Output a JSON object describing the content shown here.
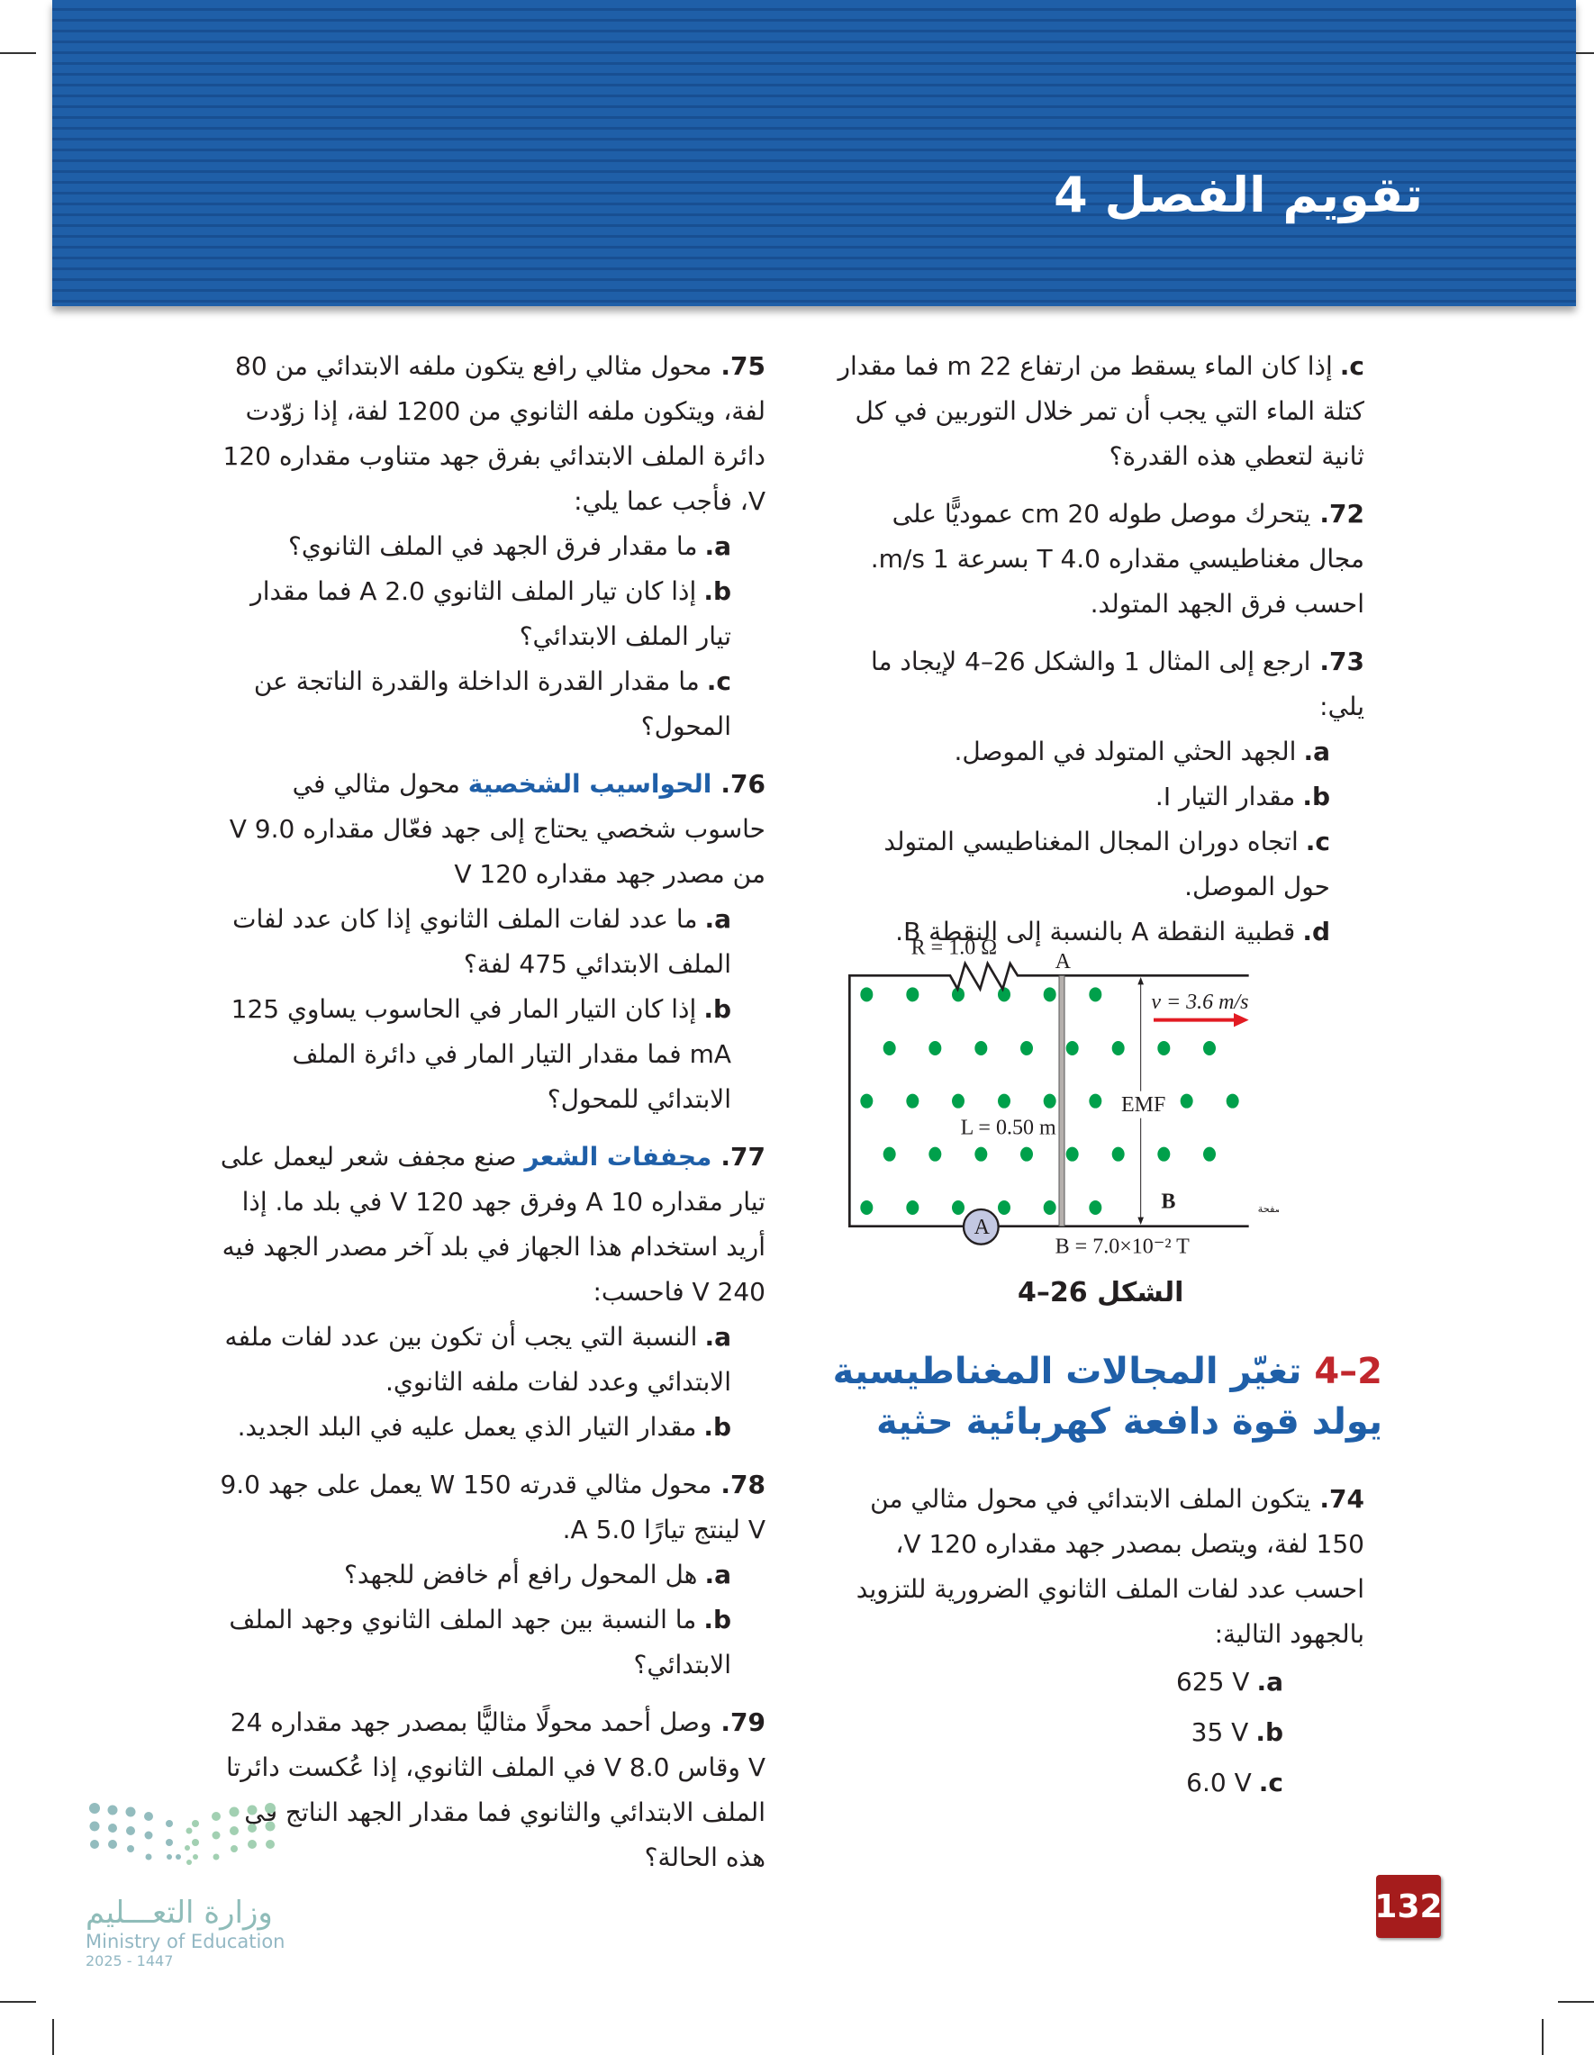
{
  "header": {
    "title": "تقويم الفصل 4",
    "color": "#1f5fa8"
  },
  "right_column": {
    "q71c": {
      "label": "c.",
      "text": "إذا كان الماء يسقط من ارتفاع 22 m فما مقدار كتلة الماء التي يجب أن تمر خلال التوربين في كل ثانية لتعطي هذه القدرة؟"
    },
    "q72": {
      "num": "72.",
      "text": "يتحرك موصل طوله 20 cm عموديًّا على مجال مغناطيسي مقداره 4.0 T بسرعة 1 m/s. احسب فرق الجهد المتولد."
    },
    "q73": {
      "num": "73.",
      "text": "ارجع إلى المثال 1 والشكل 26–4 لإيجاد ما يلي:",
      "items": [
        {
          "label": "a.",
          "text": "الجهد الحثي المتولد في الموصل."
        },
        {
          "label": "b.",
          "text": "مقدار التيار I."
        },
        {
          "label": "c.",
          "text": "اتجاه دوران المجال المغناطيسي المتولد حول الموصل."
        },
        {
          "label": "d.",
          "text": "قطبية النقطة A بالنسبة إلى النقطة B."
        }
      ]
    },
    "figure": {
      "resistance": "R = 1.0 Ω",
      "point_a": "A",
      "velocity": "v = 3.6 m/s",
      "emf": "EMF",
      "length": "L = 0.50 m",
      "field_label": "B",
      "field_direction": "خارجًا من الصفحة",
      "ammeter": "A",
      "field_value": "B = 7.0×10⁻² T",
      "caption": "الشكل 26–4",
      "dot_color": "#00a04b",
      "arrow_color": "#e21b23"
    },
    "section": {
      "num": "2–4",
      "title": "تغيّر المجالات المغناطيسية يولد قوة دافعة كهربائية حثية"
    },
    "q74": {
      "num": "74.",
      "text": "يتكون الملف الابتدائي في محول مثالي من 150 لفة، ويتصل بمصدر جهد مقداره 120 V، احسب عدد لفات الملف الثانوي الضرورية للتزويد بالجهود التالية:",
      "items": [
        {
          "label": "a.",
          "text": "625 V"
        },
        {
          "label": "b.",
          "text": "35 V"
        },
        {
          "label": "c.",
          "text": "6.0 V"
        }
      ]
    }
  },
  "left_column": {
    "q75": {
      "num": "75.",
      "text": "محول مثالي رافع يتكون ملفه الابتدائي من 80 لفة، ويتكون ملفه الثانوي من 1200 لفة، إذا زوّدت دائرة الملف الابتدائي بفرق جهد متناوب مقداره 120 V، فأجب عما يلي:",
      "items": [
        {
          "label": "a.",
          "text": "ما مقدار فرق الجهد في الملف الثانوي؟"
        },
        {
          "label": "b.",
          "text": "إذا كان تيار الملف الثانوي 2.0 A فما مقدار تيار الملف الابتدائي؟"
        },
        {
          "label": "c.",
          "text": "ما مقدار القدرة الداخلة والقدرة الناتجة عن المحول؟"
        }
      ]
    },
    "q76": {
      "num": "76.",
      "keyword": "الحواسيب الشخصية",
      "text": "محول مثالي في حاسوب شخصي يحتاج إلى جهد فعّال مقداره 9.0 V من مصدر جهد مقداره 120 V",
      "items": [
        {
          "label": "a.",
          "text": "ما عدد لفات الملف الثانوي إذا كان عدد لفات الملف الابتدائي 475 لفة؟"
        },
        {
          "label": "b.",
          "text": "إذا كان التيار المار في الحاسوب يساوي 125 mA فما مقدار التيار المار في دائرة الملف الابتدائي للمحول؟"
        }
      ]
    },
    "q77": {
      "num": "77.",
      "keyword": "مجففات الشعر",
      "text": "صنع مجفف شعر ليعمل على تيار مقداره 10 A وفرق جهد 120 V في بلد ما. إذا أريد استخدام هذا الجهاز في بلد آخر مصدر الجهد فيه 240 V فاحسب:",
      "items": [
        {
          "label": "a.",
          "text": "النسبة التي يجب أن تكون بين عدد لفات ملفه الابتدائي وعدد لفات ملفه الثانوي."
        },
        {
          "label": "b.",
          "text": "مقدار التيار الذي يعمل عليه في البلد الجديد."
        }
      ]
    },
    "q78": {
      "num": "78.",
      "text": "محول مثالي قدرته 150 W يعمل على جهد 9.0 V لينتج تيارًا 5.0 A.",
      "items": [
        {
          "label": "a.",
          "text": "هل المحول رافع أم خافض للجهد؟"
        },
        {
          "label": "b.",
          "text": "ما النسبة بين جهد الملف الثانوي وجهد الملف الابتدائي؟"
        }
      ]
    },
    "q79": {
      "num": "79.",
      "text": "وصل أحمد محولًا مثاليًّا بمصدر جهد مقداره 24 V وقاس 8.0 V في الملف الثانوي، إذا عُكست دائرتا الملف الابتدائي والثانوي فما مقدار الجهد الناتج في هذه الحالة؟"
    }
  },
  "footer": {
    "page_number": "132",
    "logo_ar": "وزارة التعـــليم",
    "logo_en": "Ministry of Education",
    "logo_year": "2025 - 1447"
  }
}
